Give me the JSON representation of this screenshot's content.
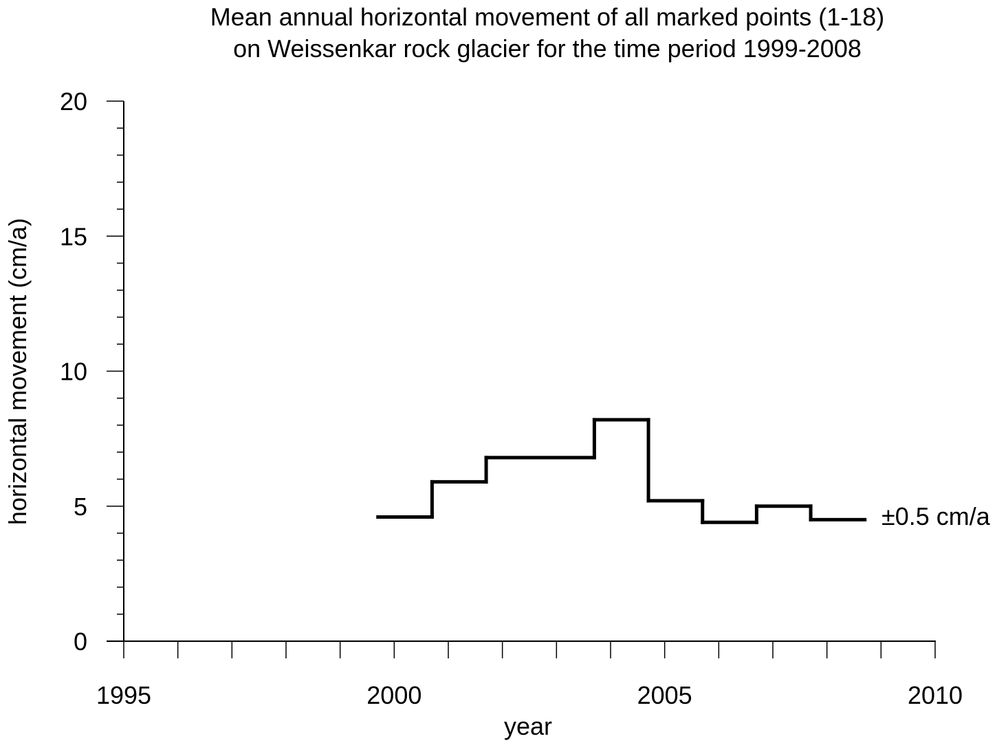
{
  "chart_data": {
    "type": "line",
    "title": "Mean annual horizontal movement of all marked points (1-18)",
    "subtitle": "on Weissenkar rock glacier for the time period 1999-2008",
    "xlabel": "year",
    "ylabel": "horizontal movement (cm/a)",
    "xlim": [
      1995,
      2010
    ],
    "ylim": [
      0,
      20
    ],
    "x_ticks": [
      "1995",
      "2000",
      "2005",
      "2010"
    ],
    "y_ticks": [
      "0",
      "5",
      "10",
      "15",
      "20"
    ],
    "x_minor_step": 1,
    "y_minor_step": 1,
    "grid": false,
    "line_color": "#000000",
    "series": [
      {
        "style": "step",
        "segments": [
          {
            "x0": 1999.7,
            "x1": 2000.7,
            "y": 4.6
          },
          {
            "x0": 2000.7,
            "x1": 2001.7,
            "y": 5.9
          },
          {
            "x0": 2001.7,
            "x1": 2003.7,
            "y": 6.8
          },
          {
            "x0": 2003.7,
            "x1": 2004.7,
            "y": 8.2
          },
          {
            "x0": 2004.7,
            "x1": 2005.7,
            "y": 5.2
          },
          {
            "x0": 2005.7,
            "x1": 2006.7,
            "y": 4.4
          },
          {
            "x0": 2006.7,
            "x1": 2007.7,
            "y": 5.0
          },
          {
            "x0": 2007.7,
            "x1": 2008.7,
            "y": 4.5
          }
        ]
      }
    ],
    "annotation": "±0.5 cm/a"
  }
}
